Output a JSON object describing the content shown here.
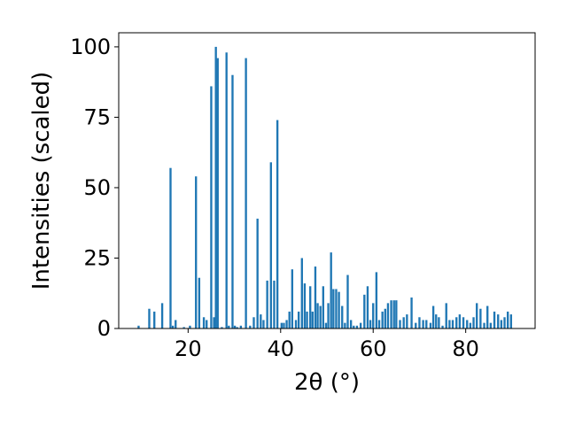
{
  "chart_data": {
    "type": "bar",
    "xlabel": "2θ (°)",
    "ylabel": "Intensities (scaled)",
    "xlim": [
      5,
      95
    ],
    "ylim": [
      0,
      105
    ],
    "xticks": [
      20,
      40,
      60,
      80
    ],
    "yticks": [
      0,
      25,
      50,
      75,
      100
    ],
    "bar_width": 0.45,
    "bar_color": "#1f77b4",
    "grid": false,
    "legend": "none",
    "series": [
      {
        "x": [
          9.3,
          11.6,
          12.7,
          14.4,
          16.2,
          16.7,
          17.3,
          19.1,
          20.4,
          21.7,
          22.4,
          23.4,
          24.0,
          25.0,
          25.6,
          26.0,
          26.4,
          27.3,
          28.3,
          28.8,
          29.6,
          30.1,
          30.6,
          31.4,
          32.5,
          33.4,
          34.2,
          35.0,
          35.7,
          36.3,
          37.1,
          37.9,
          38.6,
          39.3,
          40.2,
          40.7,
          41.3,
          41.9,
          42.5,
          43.3,
          43.9,
          44.6,
          45.2,
          45.7,
          46.4,
          46.9,
          47.5,
          48.0,
          48.6,
          49.2,
          49.8,
          50.3,
          50.9,
          51.4,
          52.0,
          52.6,
          53.3,
          53.9,
          54.5,
          55.2,
          55.8,
          56.5,
          57.3,
          58.1,
          58.8,
          59.4,
          60.0,
          60.7,
          61.3,
          62.0,
          62.6,
          63.2,
          63.9,
          64.5,
          65.0,
          65.8,
          66.6,
          67.3,
          68.3,
          69.2,
          70.0,
          70.8,
          71.5,
          72.4,
          73.0,
          73.6,
          74.2,
          75.0,
          75.8,
          76.5,
          77.2,
          78.0,
          78.7,
          79.5,
          80.3,
          81.0,
          81.7,
          82.4,
          83.2,
          84.0,
          84.7,
          85.4,
          86.2,
          87.0,
          87.7,
          88.4,
          89.1,
          89.8
        ],
        "values": [
          1,
          7,
          6,
          9,
          57,
          1,
          3,
          0.5,
          1,
          54,
          18,
          4,
          3,
          86,
          4,
          100,
          96,
          0.5,
          98,
          1,
          90,
          1,
          0.5,
          1,
          96,
          1,
          4,
          39,
          5,
          3,
          17,
          59,
          17,
          74,
          2,
          2,
          3,
          6,
          21,
          3,
          6,
          25,
          16,
          6,
          15,
          6,
          22,
          9,
          8,
          15,
          2,
          9,
          27,
          14,
          14,
          13,
          8,
          2,
          19,
          3,
          1,
          1,
          2,
          12,
          15,
          3,
          9,
          20,
          3,
          6,
          7,
          9,
          10,
          10,
          10,
          3,
          4,
          5,
          11,
          2,
          4,
          3,
          3,
          2,
          8,
          5,
          4,
          1,
          9,
          3,
          3,
          4,
          5,
          4,
          3,
          2,
          4,
          9,
          7,
          2,
          8,
          2,
          6,
          5,
          3,
          4,
          6,
          5
        ]
      }
    ]
  }
}
